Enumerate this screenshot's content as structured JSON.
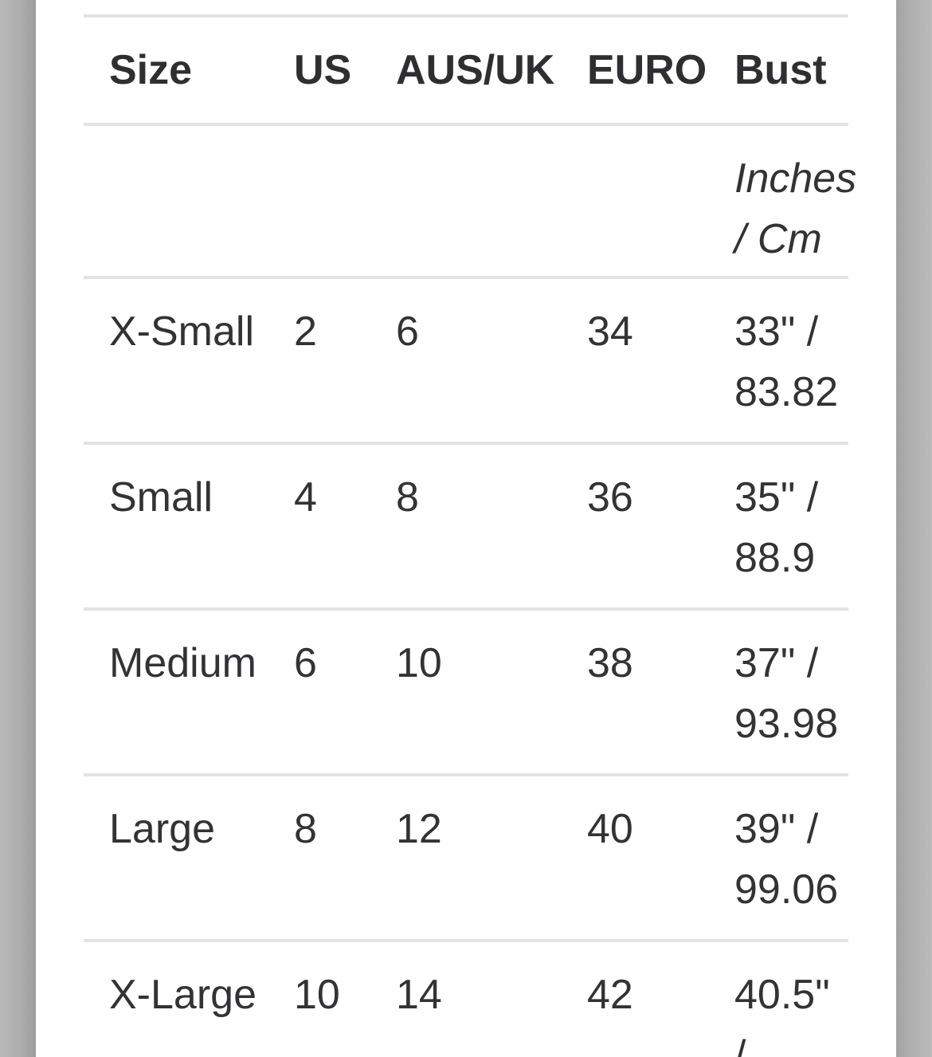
{
  "page": {
    "background_color": "#ffffff",
    "edge_shadow_dark": "#9d9d9d",
    "edge_shadow_light": "#bbbbbb",
    "divider_color": "#e3e3e3",
    "text_color": "#333335"
  },
  "size_chart": {
    "columns": {
      "size": "Size",
      "us": "US",
      "aus_uk": "AUS/UK",
      "euro": "EURO",
      "bust": "Bust"
    },
    "units_label": "Inches / Cm",
    "rows": [
      {
        "size": "X-Small",
        "us": "2",
        "aus_uk": "6",
        "euro": "34",
        "bust": "33\" / 83.82"
      },
      {
        "size": "Small",
        "us": "4",
        "aus_uk": "8",
        "euro": "36",
        "bust": "35\" / 88.9"
      },
      {
        "size": "Medium",
        "us": "6",
        "aus_uk": "10",
        "euro": "38",
        "bust": "37\" / 93.98"
      },
      {
        "size": "Large",
        "us": "8",
        "aus_uk": "12",
        "euro": "40",
        "bust": "39\" / 99.06"
      },
      {
        "size": "X-Large",
        "us": "10",
        "aus_uk": "14",
        "euro": "42",
        "bust": "40.5\" /"
      }
    ]
  }
}
